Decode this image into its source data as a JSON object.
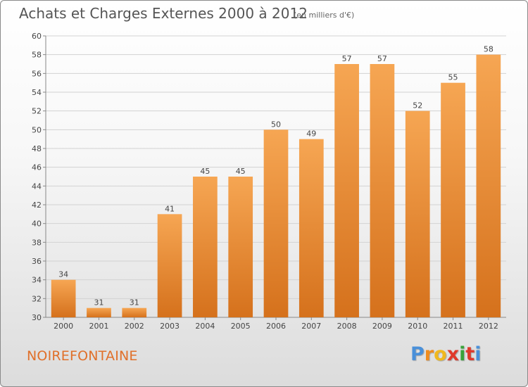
{
  "title": "Achats et Charges Externes 2000 à 2012",
  "subtitle": "(en milliers d'€)",
  "commune": "NOIREFONTAINE",
  "logo": {
    "letters": [
      "P",
      "r",
      "o",
      "x",
      "i",
      "t",
      "i"
    ],
    "colors": [
      "#4a90d9",
      "#f08c1e",
      "#f0b81e",
      "#e0392b",
      "#3aa33a",
      "#e0392b",
      "#4a90d9"
    ]
  },
  "colors": {
    "bar_top": "#f6a653",
    "bar_bottom": "#d5711c",
    "grid": "#d2d2d2",
    "axis": "#888888",
    "text": "#444444"
  },
  "chart_data": {
    "type": "bar",
    "categories": [
      "2000",
      "2001",
      "2002",
      "2003",
      "2004",
      "2005",
      "2006",
      "2007",
      "2008",
      "2009",
      "2010",
      "2011",
      "2012"
    ],
    "values": [
      34,
      31,
      31,
      41,
      45,
      45,
      50,
      49,
      57,
      57,
      52,
      55,
      58
    ],
    "yticks": [
      "30",
      "32",
      "34",
      "36",
      "38",
      "40",
      "42",
      "44",
      "46",
      "48",
      "50",
      "52",
      "54",
      "56",
      "58",
      "60"
    ],
    "ylim": [
      30,
      60
    ],
    "grid": true,
    "data_labels": true,
    "legend": "none"
  }
}
